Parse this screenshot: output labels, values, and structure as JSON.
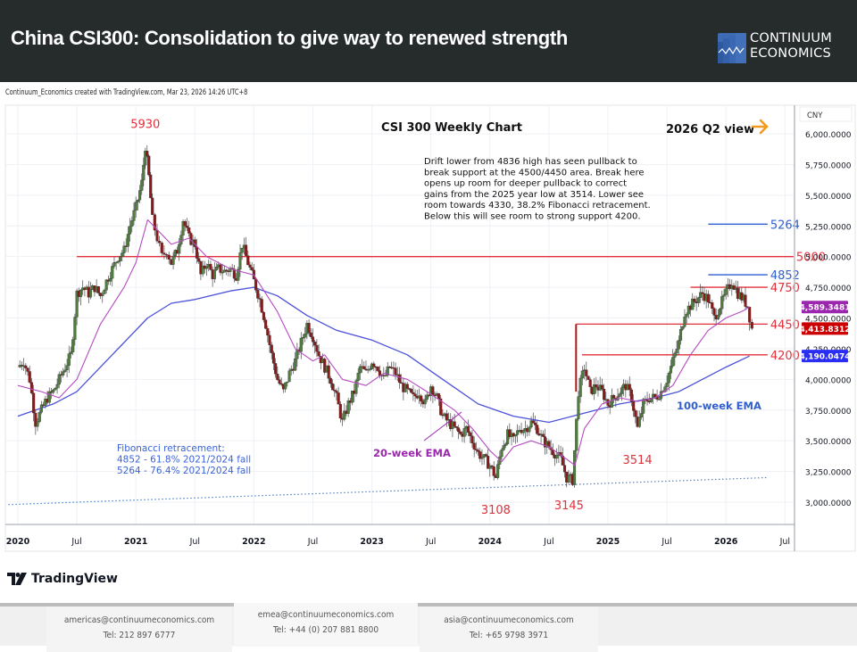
{
  "header": {
    "title": "China CSI300: Consolidation to give way to renewed strength",
    "logo_line1": "CONTINUUM",
    "logo_line2": "ECONOMICS"
  },
  "credit": "Continuum_Economics created with TradingView.com, Mar 23, 2026 14:26 UTC+8",
  "tradingview_label": "TradingView",
  "footer": {
    "contacts": [
      {
        "email": "americas@continuumeconomics.com",
        "tel": "Tel: 212 897 6777"
      },
      {
        "email": "emea@continuumeconomics.com",
        "tel": "Tel: +44 (0) 207 881 8800"
      },
      {
        "email": "asia@continuumeconomics.com",
        "tel": "Tel: +65 9798 3971"
      }
    ]
  },
  "chart_data": {
    "type": "candlestick",
    "title": "CSI 300 Weekly Chart",
    "view_label": "2026 Q2 view",
    "currency": "CNY",
    "ylim": [
      2850,
      6150
    ],
    "xlim": [
      2019.92,
      2026.75
    ],
    "grid": true,
    "y_ticks": [
      {
        "value": 6000,
        "label": "6,000.0000"
      },
      {
        "value": 5750,
        "label": "5,750.0000"
      },
      {
        "value": 5500,
        "label": "5,500.0000"
      },
      {
        "value": 5250,
        "label": "5,250.0000"
      },
      {
        "value": 5000,
        "label": "5,000.0000"
      },
      {
        "value": 4750,
        "label": "4,750.0000"
      },
      {
        "value": 4500,
        "label": "4,500.0000"
      },
      {
        "value": 4250,
        "label": "4,250.0000"
      },
      {
        "value": 4000,
        "label": "4,000.0000"
      },
      {
        "value": 3750,
        "label": "3,750.0000"
      },
      {
        "value": 3500,
        "label": "3,500.0000"
      },
      {
        "value": 3250,
        "label": "3,250.0000"
      },
      {
        "value": 3000,
        "label": "3,000.0000"
      }
    ],
    "x_ticks": [
      {
        "value": 2020.0,
        "label": "2020",
        "bold": true
      },
      {
        "value": 2020.5,
        "label": "Jul",
        "bold": false
      },
      {
        "value": 2021.0,
        "label": "2021",
        "bold": true
      },
      {
        "value": 2021.5,
        "label": "Jul",
        "bold": false
      },
      {
        "value": 2022.0,
        "label": "2022",
        "bold": true
      },
      {
        "value": 2022.5,
        "label": "Jul",
        "bold": false
      },
      {
        "value": 2023.0,
        "label": "2023",
        "bold": true
      },
      {
        "value": 2023.5,
        "label": "Jul",
        "bold": false
      },
      {
        "value": 2024.0,
        "label": "2024",
        "bold": true
      },
      {
        "value": 2024.5,
        "label": "Jul",
        "bold": false
      },
      {
        "value": 2025.0,
        "label": "2025",
        "bold": true
      },
      {
        "value": 2025.5,
        "label": "Jul",
        "bold": false
      },
      {
        "value": 2026.0,
        "label": "2026",
        "bold": true
      },
      {
        "value": 2026.5,
        "label": "Jul",
        "bold": false
      }
    ],
    "price_path": [
      [
        2020.0,
        4100
      ],
      [
        2020.05,
        4150
      ],
      [
        2020.1,
        4000
      ],
      [
        2020.15,
        3650
      ],
      [
        2020.2,
        3750
      ],
      [
        2020.25,
        3850
      ],
      [
        2020.3,
        3900
      ],
      [
        2020.35,
        4000
      ],
      [
        2020.4,
        4100
      ],
      [
        2020.45,
        4200
      ],
      [
        2020.5,
        4700
      ],
      [
        2020.55,
        4750
      ],
      [
        2020.6,
        4700
      ],
      [
        2020.65,
        4750
      ],
      [
        2020.7,
        4680
      ],
      [
        2020.75,
        4800
      ],
      [
        2020.8,
        4900
      ],
      [
        2020.85,
        5000
      ],
      [
        2020.9,
        5050
      ],
      [
        2020.95,
        5250
      ],
      [
        2021.0,
        5400
      ],
      [
        2021.05,
        5600
      ],
      [
        2021.08,
        5900
      ],
      [
        2021.11,
        5650
      ],
      [
        2021.14,
        5300
      ],
      [
        2021.18,
        5150
      ],
      [
        2021.22,
        5000
      ],
      [
        2021.26,
        5050
      ],
      [
        2021.3,
        4950
      ],
      [
        2021.35,
        5050
      ],
      [
        2021.4,
        5300
      ],
      [
        2021.45,
        5150
      ],
      [
        2021.5,
        5100
      ],
      [
        2021.55,
        4850
      ],
      [
        2021.6,
        4950
      ],
      [
        2021.65,
        4850
      ],
      [
        2021.7,
        4900
      ],
      [
        2021.75,
        4880
      ],
      [
        2021.8,
        4900
      ],
      [
        2021.85,
        4850
      ],
      [
        2021.9,
        5100
      ],
      [
        2021.95,
        4950
      ],
      [
        2022.0,
        4800
      ],
      [
        2022.05,
        4650
      ],
      [
        2022.1,
        4450
      ],
      [
        2022.15,
        4200
      ],
      [
        2022.2,
        4000
      ],
      [
        2022.25,
        3900
      ],
      [
        2022.3,
        4050
      ],
      [
        2022.35,
        4150
      ],
      [
        2022.4,
        4300
      ],
      [
        2022.45,
        4450
      ],
      [
        2022.5,
        4350
      ],
      [
        2022.55,
        4200
      ],
      [
        2022.6,
        4100
      ],
      [
        2022.65,
        4000
      ],
      [
        2022.7,
        3850
      ],
      [
        2022.75,
        3650
      ],
      [
        2022.8,
        3800
      ],
      [
        2022.85,
        3900
      ],
      [
        2022.9,
        4100
      ],
      [
        2022.95,
        4050
      ],
      [
        2023.0,
        4150
      ],
      [
        2023.05,
        4100
      ],
      [
        2023.1,
        4000
      ],
      [
        2023.15,
        4100
      ],
      [
        2023.2,
        4050
      ],
      [
        2023.25,
        3950
      ],
      [
        2023.3,
        3900
      ],
      [
        2023.35,
        3850
      ],
      [
        2023.4,
        3900
      ],
      [
        2023.45,
        3800
      ],
      [
        2023.5,
        3950
      ],
      [
        2023.55,
        3850
      ],
      [
        2023.6,
        3700
      ],
      [
        2023.65,
        3650
      ],
      [
        2023.7,
        3600
      ],
      [
        2023.75,
        3550
      ],
      [
        2023.8,
        3600
      ],
      [
        2023.85,
        3500
      ],
      [
        2023.9,
        3400
      ],
      [
        2023.95,
        3350
      ],
      [
        2024.0,
        3300
      ],
      [
        2024.05,
        3200
      ],
      [
        2024.1,
        3450
      ],
      [
        2024.15,
        3550
      ],
      [
        2024.2,
        3500
      ],
      [
        2024.25,
        3600
      ],
      [
        2024.3,
        3600
      ],
      [
        2024.35,
        3650
      ],
      [
        2024.4,
        3600
      ],
      [
        2024.45,
        3500
      ],
      [
        2024.5,
        3450
      ],
      [
        2024.55,
        3400
      ],
      [
        2024.6,
        3350
      ],
      [
        2024.65,
        3200
      ],
      [
        2024.7,
        3180
      ],
      [
        2024.75,
        3900
      ],
      [
        2024.8,
        4100
      ],
      [
        2024.85,
        3900
      ],
      [
        2024.9,
        3950
      ],
      [
        2024.95,
        3900
      ],
      [
        2025.0,
        3800
      ],
      [
        2025.05,
        3850
      ],
      [
        2025.1,
        3900
      ],
      [
        2025.15,
        3950
      ],
      [
        2025.2,
        3850
      ],
      [
        2025.25,
        3600
      ],
      [
        2025.3,
        3800
      ],
      [
        2025.35,
        3850
      ],
      [
        2025.4,
        3850
      ],
      [
        2025.45,
        3900
      ],
      [
        2025.5,
        4000
      ],
      [
        2025.55,
        4150
      ],
      [
        2025.6,
        4300
      ],
      [
        2025.65,
        4550
      ],
      [
        2025.7,
        4600
      ],
      [
        2025.75,
        4650
      ],
      [
        2025.8,
        4700
      ],
      [
        2025.85,
        4650
      ],
      [
        2025.9,
        4500
      ],
      [
        2025.95,
        4600
      ],
      [
        2026.0,
        4700
      ],
      [
        2026.05,
        4800
      ],
      [
        2026.1,
        4700
      ],
      [
        2026.15,
        4650
      ],
      [
        2026.18,
        4600
      ],
      [
        2026.22,
        4414
      ]
    ],
    "ema20": [
      [
        2020.0,
        3950
      ],
      [
        2020.2,
        3900
      ],
      [
        2020.35,
        3850
      ],
      [
        2020.5,
        4000
      ],
      [
        2020.7,
        4450
      ],
      [
        2020.9,
        4750
      ],
      [
        2021.0,
        4950
      ],
      [
        2021.1,
        5300
      ],
      [
        2021.2,
        5200
      ],
      [
        2021.3,
        5100
      ],
      [
        2021.45,
        5150
      ],
      [
        2021.6,
        5000
      ],
      [
        2021.8,
        4900
      ],
      [
        2022.0,
        4850
      ],
      [
        2022.2,
        4550
      ],
      [
        2022.35,
        4250
      ],
      [
        2022.5,
        4150
      ],
      [
        2022.6,
        4200
      ],
      [
        2022.75,
        4000
      ],
      [
        2022.95,
        3950
      ],
      [
        2023.1,
        4050
      ],
      [
        2023.3,
        4000
      ],
      [
        2023.5,
        3880
      ],
      [
        2023.7,
        3750
      ],
      [
        2023.85,
        3600
      ],
      [
        2024.0,
        3420
      ],
      [
        2024.1,
        3330
      ],
      [
        2024.2,
        3450
      ],
      [
        2024.35,
        3500
      ],
      [
        2024.5,
        3450
      ],
      [
        2024.65,
        3350
      ],
      [
        2024.72,
        3300
      ],
      [
        2024.8,
        3600
      ],
      [
        2024.95,
        3800
      ],
      [
        2025.1,
        3850
      ],
      [
        2025.25,
        3820
      ],
      [
        2025.4,
        3850
      ],
      [
        2025.55,
        3950
      ],
      [
        2025.7,
        4200
      ],
      [
        2025.85,
        4400
      ],
      [
        2026.0,
        4500
      ],
      [
        2026.15,
        4560
      ],
      [
        2026.2,
        4589
      ]
    ],
    "ema100": [
      [
        2020.0,
        3700
      ],
      [
        2020.3,
        3800
      ],
      [
        2020.5,
        3900
      ],
      [
        2020.7,
        4100
      ],
      [
        2020.9,
        4300
      ],
      [
        2021.1,
        4500
      ],
      [
        2021.3,
        4620
      ],
      [
        2021.5,
        4650
      ],
      [
        2021.8,
        4720
      ],
      [
        2022.0,
        4750
      ],
      [
        2022.2,
        4680
      ],
      [
        2022.45,
        4520
      ],
      [
        2022.7,
        4400
      ],
      [
        2023.0,
        4320
      ],
      [
        2023.3,
        4200
      ],
      [
        2023.6,
        4000
      ],
      [
        2023.9,
        3800
      ],
      [
        2024.2,
        3700
      ],
      [
        2024.5,
        3650
      ],
      [
        2024.7,
        3700
      ],
      [
        2024.9,
        3750
      ],
      [
        2025.1,
        3800
      ],
      [
        2025.4,
        3850
      ],
      [
        2025.6,
        3900
      ],
      [
        2025.8,
        4000
      ],
      [
        2026.0,
        4100
      ],
      [
        2026.2,
        4190
      ]
    ],
    "series": [
      {
        "name": "CSI 300 weekly candles",
        "color_up": "#4f7d3e",
        "color_down": "#8b1a1a"
      },
      {
        "name": "20-week EMA",
        "color": "#b54bbf",
        "last": 4589.3481
      },
      {
        "name": "100-week EMA",
        "color": "#4c52d9",
        "last": 4190.0474
      }
    ],
    "price_tags": [
      {
        "label": "4,589.3481",
        "value": 4589.3481,
        "color": "#9b27af"
      },
      {
        "label": "4,413.8312",
        "value": 4413.8312,
        "color": "#cc0000"
      },
      {
        "label": "4,190.0474",
        "value": 4190.0474,
        "color": "#2a2ef5"
      }
    ],
    "levels": [
      {
        "label": "5264",
        "value": 5264,
        "color": "#2f5fd0",
        "x_start": 2025.85,
        "x_end": 2026.33
      },
      {
        "label": "5000",
        "value": 5000,
        "color": "#e0303a",
        "x_start": 2020.5,
        "x_end": 2026.55
      },
      {
        "label": "4852",
        "value": 4852,
        "color": "#2f5fd0",
        "x_start": 2025.85,
        "x_end": 2026.33
      },
      {
        "label": "4750",
        "value": 4750,
        "color": "#e0303a",
        "x_start": 2025.7,
        "x_end": 2026.33
      },
      {
        "label": "4450",
        "value": 4450,
        "color": "#e0303a",
        "x_start": 2024.73,
        "x_end": 2026.33
      },
      {
        "label": "4200",
        "value": 4200,
        "color": "#e0303a",
        "x_start": 2024.78,
        "x_end": 2026.33
      }
    ],
    "support_trendline": {
      "style": "dotted",
      "color": "#4a7fd4",
      "from": [
        2019.92,
        2980
      ],
      "to": [
        2026.35,
        3200
      ]
    },
    "annotations": [
      {
        "text": "5930",
        "x": 2021.08,
        "y": 5930,
        "color": "#e0303a",
        "kind": "high"
      },
      {
        "text": "3108",
        "x": 2024.05,
        "y": 3108,
        "color": "#e0303a",
        "kind": "low"
      },
      {
        "text": "3145",
        "x": 2024.67,
        "y": 3145,
        "color": "#e0303a",
        "kind": "low"
      },
      {
        "text": "3514",
        "x": 2025.25,
        "y": 3514,
        "color": "#e0303a",
        "kind": "low"
      },
      {
        "text": "20-week EMA",
        "color": "#9b27af"
      },
      {
        "text": "100-week EMA",
        "color": "#2f5fd0"
      }
    ],
    "commentary": [
      "Drift lower from 4836 high has seen pullback to",
      "break support at the 4500/4450 area. Break here",
      "opens up room for deeper pullback to correct",
      "gains from the 2025 year low at 3514. Lower see",
      "room towards 4330, 38.2% Fibonacci retracement.",
      "Below this will see room to strong support 4200."
    ],
    "fibonacci_note": [
      "Fibonacci retracement:",
      "4852 - 61.8% 2021/2024 fall",
      "5264 - 76.4% 2021/2024 fall"
    ]
  }
}
